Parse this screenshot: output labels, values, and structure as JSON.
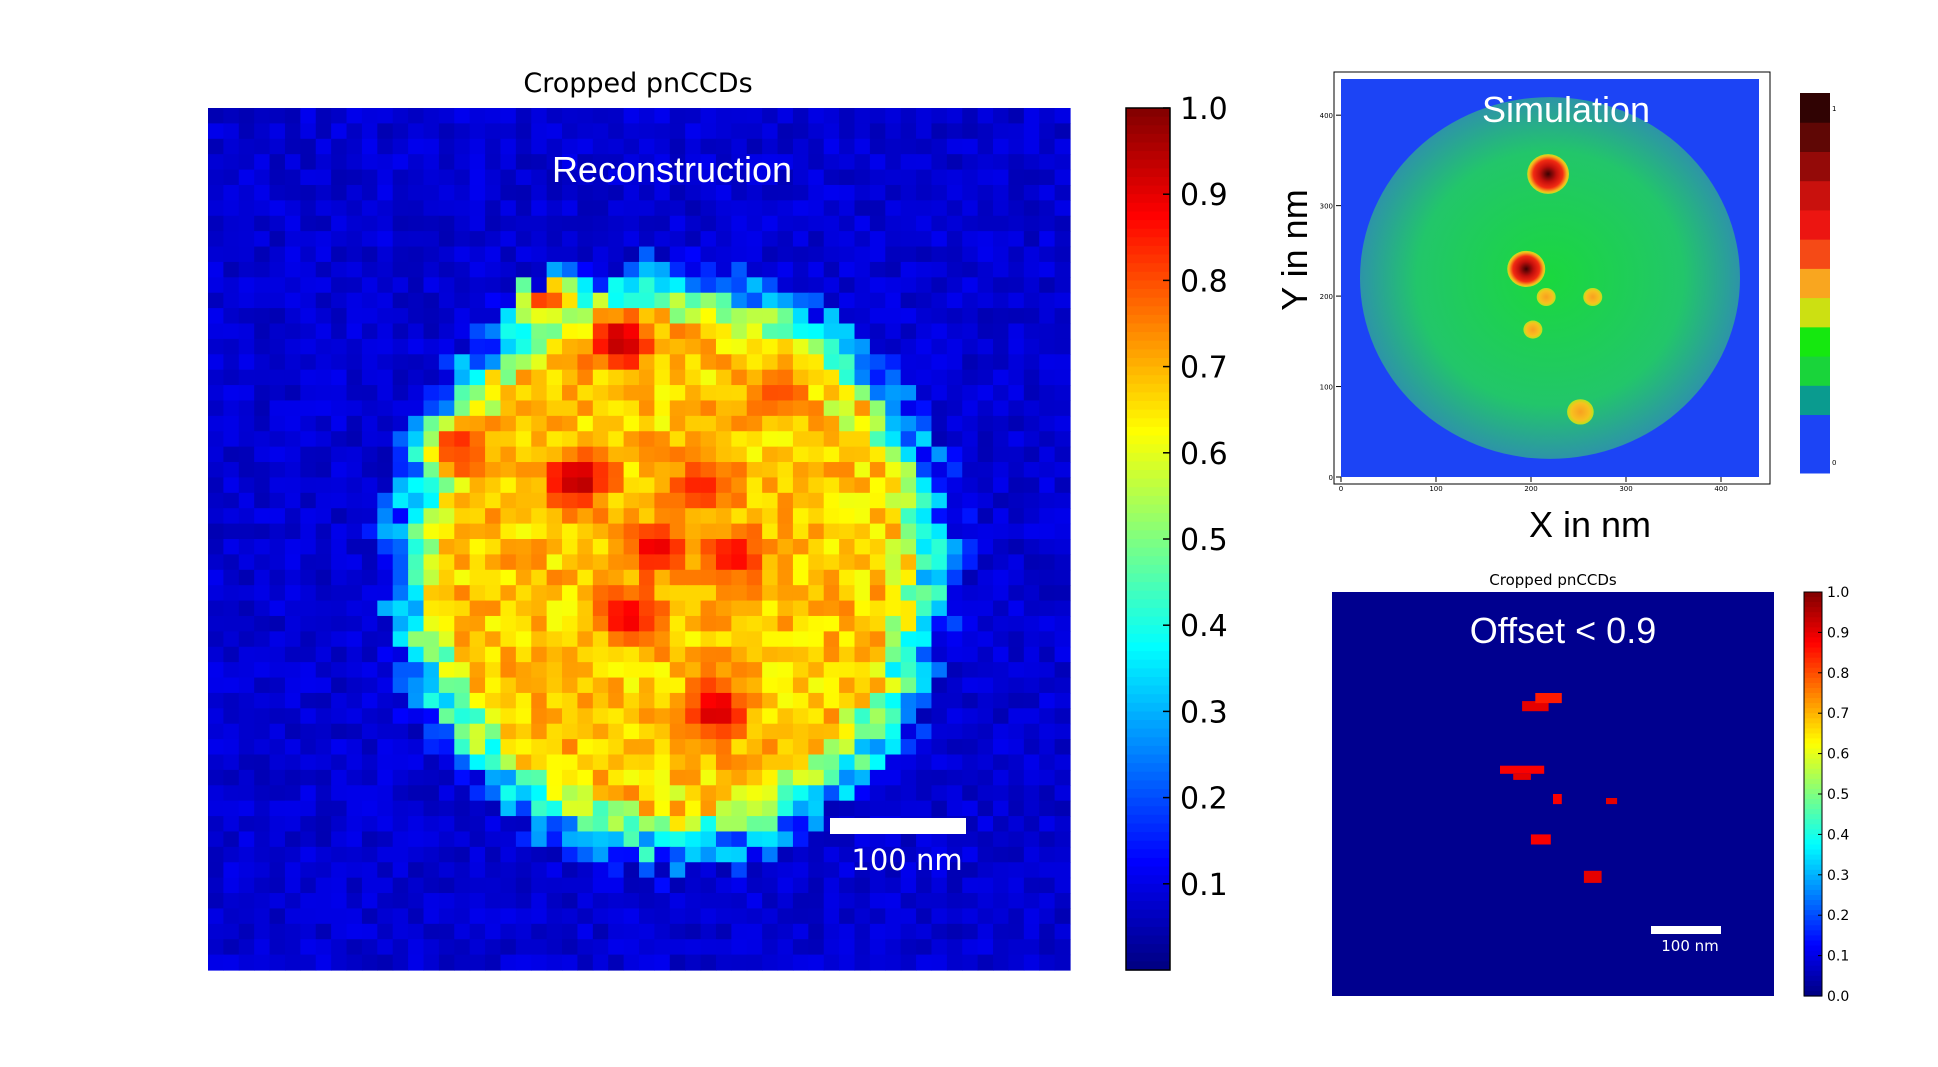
{
  "chart_data": [
    {
      "type": "heatmap",
      "title": "Cropped pnCCDs",
      "annotation": "Reconstruction",
      "scalebar_label": "100 nm",
      "colormap": "jet",
      "colorbar_range": [
        0.0,
        1.0
      ],
      "colorbar_ticks": [
        "0.1",
        "0.2",
        "0.3",
        "0.4",
        "0.5",
        "0.6",
        "0.7",
        "0.8",
        "0.9",
        "1.0"
      ],
      "grid": [
        56,
        56
      ],
      "background_value": 0.05,
      "blob": {
        "center": [
          0.535,
          0.53
        ],
        "radius_x": 0.32,
        "radius_y": 0.34,
        "level": 0.68
      },
      "hotspots": [
        {
          "x": 0.43,
          "y": 0.43,
          "value": 0.96
        },
        {
          "x": 0.48,
          "y": 0.27,
          "value": 0.95
        },
        {
          "x": 0.59,
          "y": 0.7,
          "value": 0.93
        },
        {
          "x": 0.49,
          "y": 0.59,
          "value": 0.9
        },
        {
          "x": 0.52,
          "y": 0.51,
          "value": 0.9
        },
        {
          "x": 0.61,
          "y": 0.52,
          "value": 0.88
        },
        {
          "x": 0.29,
          "y": 0.39,
          "value": 0.85
        },
        {
          "x": 0.39,
          "y": 0.22,
          "value": 0.84
        },
        {
          "x": 0.57,
          "y": 0.44,
          "value": 0.85
        },
        {
          "x": 0.66,
          "y": 0.33,
          "value": 0.8
        }
      ]
    },
    {
      "type": "heatmap",
      "title": "",
      "annotation": "Simulation",
      "xlabel": "X in nm",
      "ylabel": "Y in nm",
      "xlim": [
        0,
        440
      ],
      "ylim": [
        0,
        440
      ],
      "xticks": [
        "0",
        "100",
        "200",
        "300",
        "400"
      ],
      "yticks": [
        "0",
        "100",
        "200",
        "300",
        "400"
      ],
      "colorbar_ticks": [
        "0",
        "1"
      ],
      "colorbar_colors": [
        "#1c44f5",
        "#1c44f5",
        "#0a9b8f",
        "#19d43a",
        "#15e80f",
        "#cce012",
        "#f9a61f",
        "#f54a16",
        "#ec1511",
        "#c9110d",
        "#940a08",
        "#5f0705",
        "#300303"
      ],
      "sphere": {
        "center": [
          220,
          220
        ],
        "radius": 200
      },
      "particles": [
        {
          "x": 218,
          "y": 335,
          "r": 22,
          "value": 0.95
        },
        {
          "x": 195,
          "y": 230,
          "r": 20,
          "value": 0.95
        },
        {
          "x": 216,
          "y": 199,
          "r": 10,
          "value": 0.7
        },
        {
          "x": 265,
          "y": 199,
          "r": 10,
          "value": 0.7
        },
        {
          "x": 202,
          "y": 163,
          "r": 10,
          "value": 0.7
        },
        {
          "x": 252,
          "y": 72,
          "r": 14,
          "value": 0.75
        }
      ]
    },
    {
      "type": "heatmap",
      "title": "Cropped pnCCDs",
      "annotation": "Offset < 0.9",
      "scalebar_label": "100 nm",
      "colorbar_range": [
        0.0,
        1.0
      ],
      "colorbar_ticks": [
        "0.0",
        "0.1",
        "0.2",
        "0.3",
        "0.4",
        "0.5",
        "0.6",
        "0.7",
        "0.8",
        "0.9",
        "1.0"
      ],
      "background_value": 0.0,
      "hot_cells": [
        {
          "x": 0.43,
          "y": 0.27,
          "w": 0.06,
          "h": 0.025,
          "value": 0.9
        },
        {
          "x": 0.46,
          "y": 0.25,
          "w": 0.06,
          "h": 0.025,
          "value": 0.85
        },
        {
          "x": 0.38,
          "y": 0.43,
          "w": 0.1,
          "h": 0.02,
          "value": 0.88
        },
        {
          "x": 0.41,
          "y": 0.45,
          "w": 0.04,
          "h": 0.015,
          "value": 0.9
        },
        {
          "x": 0.5,
          "y": 0.5,
          "w": 0.02,
          "h": 0.025,
          "value": 0.88
        },
        {
          "x": 0.62,
          "y": 0.51,
          "w": 0.025,
          "h": 0.015,
          "value": 0.9
        },
        {
          "x": 0.45,
          "y": 0.6,
          "w": 0.045,
          "h": 0.025,
          "value": 0.88
        },
        {
          "x": 0.57,
          "y": 0.69,
          "w": 0.04,
          "h": 0.03,
          "value": 0.9
        }
      ]
    }
  ]
}
